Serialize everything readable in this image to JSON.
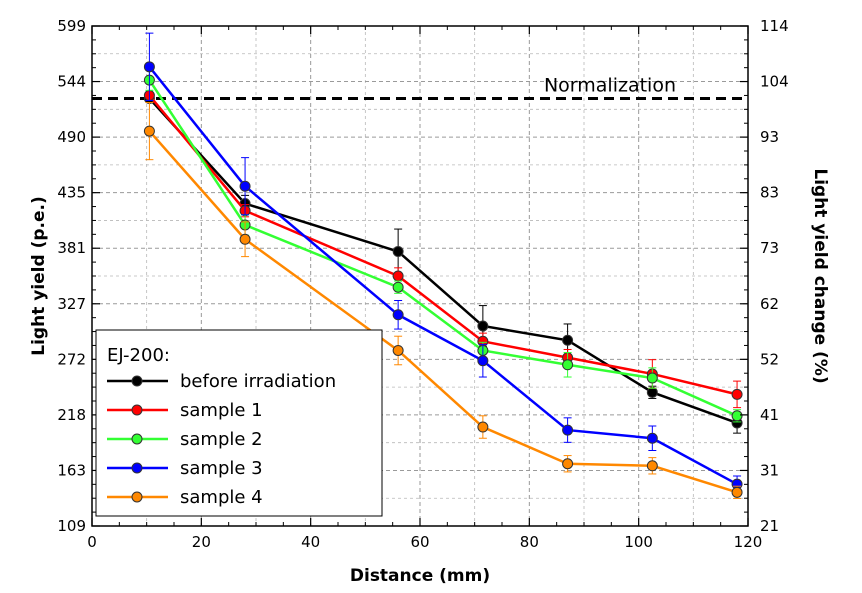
{
  "chart_data": {
    "type": "line",
    "title": "",
    "xlabel": "Distance (mm)",
    "ylabel": "Light yield (p.e.)",
    "ylabel_right": "Light yield change (%)",
    "xlim": [
      0,
      120
    ],
    "ylim": [
      109,
      599
    ],
    "ylim_right": [
      21,
      114
    ],
    "x_ticks": [
      "0",
      "20",
      "40",
      "60",
      "80",
      "100",
      "120"
    ],
    "y_ticks": [
      "109",
      "163",
      "218",
      "272",
      "327",
      "381",
      "435",
      "490",
      "544",
      "599"
    ],
    "y_ticks_right": [
      "21",
      "31",
      "41",
      "52",
      "62",
      "73",
      "83",
      "93",
      "104",
      "114"
    ],
    "grid": true,
    "normalization": {
      "label": "Normalization",
      "y": 528
    },
    "legend": {
      "title": "EJ-200:",
      "placement": "bottom-left"
    },
    "x": [
      10.5,
      28,
      56,
      71.5,
      87,
      102.5,
      118
    ],
    "series": [
      {
        "name": "before irradiation",
        "color": "#000000",
        "values": [
          528,
          425,
          378,
          305,
          291,
          240,
          210
        ],
        "errors": [
          0,
          8,
          22,
          20,
          16,
          6,
          10
        ]
      },
      {
        "name": "sample 1",
        "color": "#ff0000",
        "values": [
          531,
          418,
          354,
          290,
          274,
          258,
          238
        ],
        "errors": [
          0,
          6,
          8,
          8,
          8,
          14,
          13
        ]
      },
      {
        "name": "sample 2",
        "color": "#33ff33",
        "values": [
          546,
          404,
          343,
          281,
          267,
          254,
          217
        ],
        "errors": [
          10,
          10,
          6,
          8,
          12,
          10,
          6
        ]
      },
      {
        "name": "sample 3",
        "color": "#0000ff",
        "values": [
          559,
          442,
          316,
          271,
          203,
          195,
          150
        ],
        "errors": [
          33,
          28,
          14,
          16,
          12,
          12,
          8
        ]
      },
      {
        "name": "sample 4",
        "color": "#ff8800",
        "values": [
          496,
          390,
          281,
          206,
          170,
          168,
          142
        ],
        "errors": [
          28,
          17,
          14,
          11,
          8,
          8,
          6
        ]
      }
    ]
  }
}
